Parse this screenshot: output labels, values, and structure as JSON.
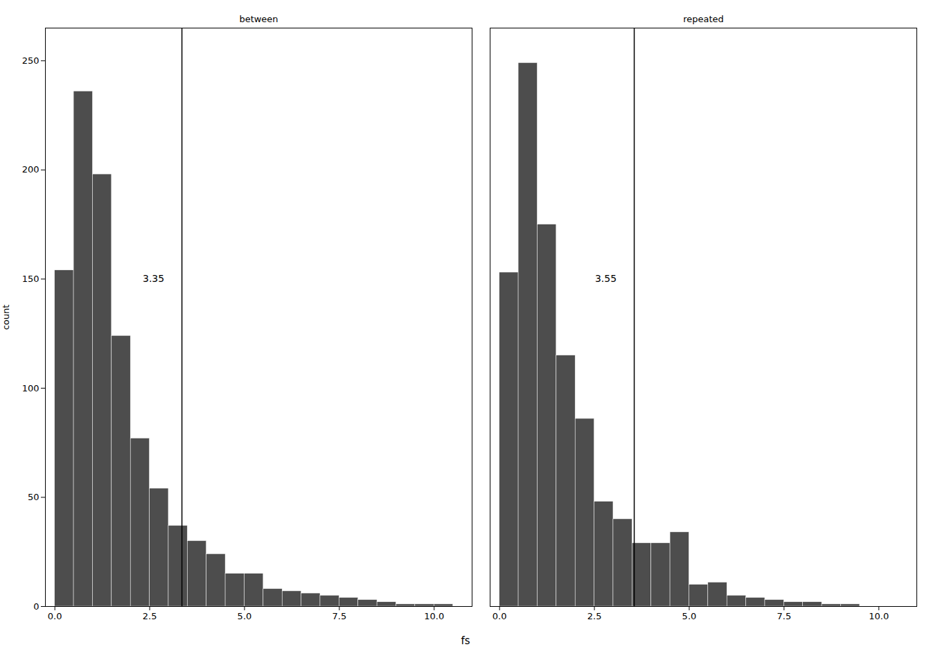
{
  "chart_data": {
    "type": "histogram",
    "xlabel": "fs",
    "ylabel": "count",
    "color": "#4d4d4d",
    "xlim": [
      -0.25,
      11.0
    ],
    "ylim": [
      0,
      265
    ],
    "xticks": [
      {
        "value": 0,
        "label": "0.0"
      },
      {
        "value": 2.5,
        "label": "2.5"
      },
      {
        "value": 5,
        "label": "5.0"
      },
      {
        "value": 7.5,
        "label": "7.5"
      },
      {
        "value": 10,
        "label": "10.0"
      }
    ],
    "yticks": [
      0,
      50,
      100,
      150,
      200,
      250
    ],
    "grid": false,
    "panels": [
      {
        "title": "between",
        "bins": [
          0.0,
          0.5,
          1.0,
          1.5,
          2.0,
          2.5,
          3.0,
          3.5,
          4.0,
          4.5,
          5.0,
          5.5,
          6.0,
          6.5,
          7.0,
          7.5,
          8.0,
          8.5,
          9.0,
          9.5,
          10.0,
          10.5
        ],
        "values": [
          154,
          236,
          198,
          124,
          77,
          54,
          37,
          30,
          24,
          15,
          15,
          8,
          7,
          6,
          5,
          4,
          3,
          2,
          1,
          1,
          1
        ],
        "vline": {
          "x": 3.35,
          "color": "#000000"
        },
        "annotations": [
          {
            "text": "3.35",
            "x": 2.6,
            "y": 150
          }
        ]
      },
      {
        "title": "repeated",
        "bins": [
          0.0,
          0.5,
          1.0,
          1.5,
          2.0,
          2.5,
          3.0,
          3.5,
          4.0,
          4.5,
          5.0,
          5.5,
          6.0,
          6.5,
          7.0,
          7.5,
          8.0,
          8.5,
          9.0,
          9.5
        ],
        "values": [
          153,
          249,
          175,
          115,
          86,
          48,
          40,
          29,
          29,
          34,
          10,
          11,
          5,
          4,
          3,
          2,
          2,
          1,
          1
        ],
        "vline": {
          "x": 3.55,
          "color": "#000000"
        },
        "annotations": [
          {
            "text": "3.55",
            "x": 2.8,
            "y": 150
          }
        ]
      }
    ]
  }
}
